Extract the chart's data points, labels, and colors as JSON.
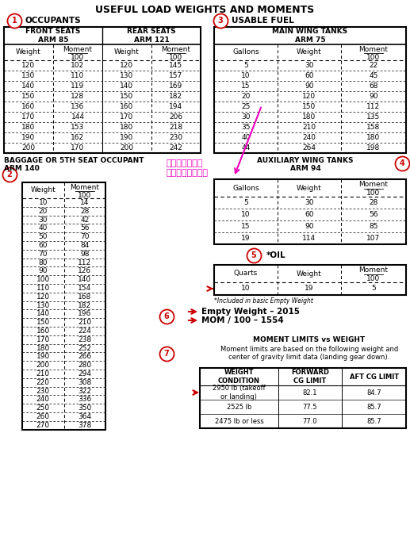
{
  "title": "USEFUL LOAD WEIGHTS AND MOMENTS",
  "front_seats_data": [
    [
      120,
      102
    ],
    [
      130,
      110
    ],
    [
      140,
      119
    ],
    [
      150,
      128
    ],
    [
      160,
      136
    ],
    [
      170,
      144
    ],
    [
      180,
      153
    ],
    [
      190,
      162
    ],
    [
      200,
      170
    ]
  ],
  "rear_seats_data": [
    [
      120,
      145
    ],
    [
      130,
      157
    ],
    [
      140,
      169
    ],
    [
      150,
      182
    ],
    [
      160,
      194
    ],
    [
      170,
      206
    ],
    [
      180,
      218
    ],
    [
      190,
      230
    ],
    [
      200,
      242
    ]
  ],
  "main_wing_data": [
    [
      5,
      30,
      22
    ],
    [
      10,
      60,
      45
    ],
    [
      15,
      90,
      68
    ],
    [
      20,
      120,
      90
    ],
    [
      25,
      150,
      112
    ],
    [
      30,
      180,
      135
    ],
    [
      35,
      210,
      158
    ],
    [
      40,
      240,
      180
    ],
    [
      44,
      264,
      198
    ]
  ],
  "baggage_data": [
    [
      10,
      14
    ],
    [
      20,
      28
    ],
    [
      30,
      42
    ],
    [
      40,
      56
    ],
    [
      50,
      70
    ],
    [
      60,
      84
    ],
    [
      70,
      98
    ],
    [
      80,
      112
    ],
    [
      90,
      126
    ],
    [
      100,
      140
    ],
    [
      110,
      154
    ],
    [
      120,
      168
    ],
    [
      130,
      182
    ],
    [
      140,
      196
    ],
    [
      150,
      210
    ],
    [
      160,
      224
    ],
    [
      170,
      238
    ],
    [
      180,
      252
    ],
    [
      190,
      266
    ],
    [
      200,
      280
    ],
    [
      210,
      294
    ],
    [
      220,
      308
    ],
    [
      230,
      322
    ],
    [
      240,
      336
    ],
    [
      250,
      350
    ],
    [
      260,
      364
    ],
    [
      270,
      378
    ]
  ],
  "aux_wing_data": [
    [
      5,
      30,
      28
    ],
    [
      10,
      60,
      56
    ],
    [
      15,
      90,
      85
    ],
    [
      19,
      114,
      107
    ]
  ],
  "oil_data": [
    [
      10,
      19,
      5
    ]
  ],
  "oil_note": "*Included in basic Empty Weight",
  "empty_weight_value": "2015",
  "mom_value": "1554",
  "moment_limits_text": "Moment limits are based on the following weight and\ncenter of gravity limit data (landing gear down).",
  "cg_table_data": [
    [
      "2950 lb (takeoff\nor landing)",
      "82.1",
      "84.7"
    ],
    [
      "2525 lb",
      "77.5",
      "85.7"
    ],
    [
      "2475 lb or less",
      "77.0",
      "85.7"
    ]
  ],
  "circle_color": "#cc0000",
  "arrow_pink": "#ee00bb",
  "arrow_red": "#cc0000",
  "japanese_text": "ガロンからでも\nモーメントが分る"
}
